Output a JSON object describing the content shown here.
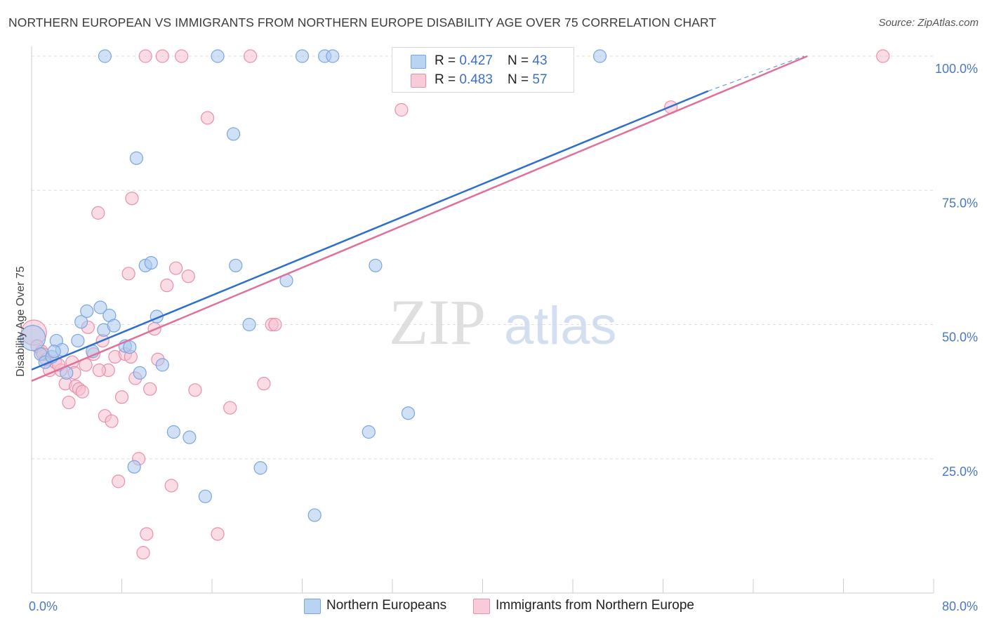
{
  "header": {
    "title": "NORTHERN EUROPEAN VS IMMIGRANTS FROM NORTHERN EUROPE DISABILITY AGE OVER 75 CORRELATION CHART",
    "source": "Source: ZipAtlas.com"
  },
  "watermark": {
    "zip": "ZIP",
    "atlas": "atlas"
  },
  "legend": {
    "blue": {
      "r_label": "R = ",
      "r_value": "0.427",
      "n_label": "N = ",
      "n_value": "43"
    },
    "pink": {
      "r_label": "R = ",
      "r_value": "0.483",
      "n_label": "N = ",
      "n_value": "57"
    }
  },
  "colors": {
    "blue_fill": "#aac8ee",
    "blue_stroke": "#7aa6df",
    "blue_line": "#2e6fcc",
    "pink_fill": "#f6bfd0",
    "pink_stroke": "#ea8fac",
    "pink_line": "#e0709a",
    "grid": "#dcdcdc",
    "tick_text": "#4a78c2"
  },
  "chart_data": {
    "type": "scatter",
    "title": "NORTHERN EUROPEAN VS IMMIGRANTS FROM NORTHERN EUROPE DISABILITY AGE OVER 75 CORRELATION CHART",
    "xlabel": "",
    "ylabel": "Disability Age Over 75",
    "xlim": [
      0,
      80
    ],
    "ylim": [
      0,
      100
    ],
    "x_tick_labels": [
      "0.0%",
      "80.0%"
    ],
    "y_ticks": [
      25,
      50,
      75,
      100
    ],
    "y_tick_labels": [
      "25.0%",
      "50.0%",
      "75.0%",
      "100.0%"
    ],
    "grid": true,
    "legend_position": "top-center",
    "series": [
      {
        "name": "Northern Europeans",
        "r": 0.427,
        "n": 43,
        "trendline": {
          "x": [
            0,
            60
          ],
          "y": [
            41.6,
            93.5
          ],
          "dashed_to": {
            "x": 68.5,
            "y": 100
          }
        },
        "points": [
          [
            0.1,
            47.5
          ],
          [
            0.8,
            44.5
          ],
          [
            1.2,
            43.0
          ],
          [
            1.8,
            44.0
          ],
          [
            2.2,
            47.0
          ],
          [
            2.7,
            45.3
          ],
          [
            3.1,
            41.0
          ],
          [
            4.1,
            47.0
          ],
          [
            4.4,
            50.5
          ],
          [
            4.9,
            52.5
          ],
          [
            5.4,
            45.0
          ],
          [
            6.1,
            53.2
          ],
          [
            6.4,
            49.0
          ],
          [
            6.9,
            51.7
          ],
          [
            7.3,
            49.8
          ],
          [
            8.3,
            46.0
          ],
          [
            8.7,
            45.8
          ],
          [
            9.1,
            23.5
          ],
          [
            9.3,
            81.0
          ],
          [
            9.6,
            41.0
          ],
          [
            10.1,
            61.0
          ],
          [
            10.6,
            61.5
          ],
          [
            11.1,
            51.5
          ],
          [
            11.6,
            42.5
          ],
          [
            12.6,
            30.0
          ],
          [
            14.0,
            29.0
          ],
          [
            15.4,
            18.0
          ],
          [
            16.5,
            100.0
          ],
          [
            17.9,
            85.5
          ],
          [
            18.1,
            61.0
          ],
          [
            19.3,
            50.0
          ],
          [
            20.3,
            23.3
          ],
          [
            22.6,
            58.2
          ],
          [
            24.0,
            100.0
          ],
          [
            25.1,
            14.5
          ],
          [
            26.0,
            100.0
          ],
          [
            26.7,
            100.0
          ],
          [
            29.9,
            30.0
          ],
          [
            30.5,
            61.0
          ],
          [
            33.4,
            33.5
          ],
          [
            50.4,
            100.0
          ],
          [
            6.5,
            100.0
          ],
          [
            2.0,
            45.0
          ]
        ]
      },
      {
        "name": "Immigrants from Northern Europe",
        "r": 0.483,
        "n": 57,
        "trendline": {
          "x": [
            0,
            68.8
          ],
          "y": [
            39.5,
            100
          ]
        },
        "points": [
          [
            0.2,
            48.5
          ],
          [
            0.5,
            46.0
          ],
          [
            0.9,
            45.0
          ],
          [
            1.3,
            43.5
          ],
          [
            1.6,
            41.5
          ],
          [
            2.1,
            43.0
          ],
          [
            2.6,
            41.5
          ],
          [
            3.0,
            39.0
          ],
          [
            3.3,
            35.5
          ],
          [
            3.6,
            43.0
          ],
          [
            3.9,
            38.5
          ],
          [
            4.2,
            38.0
          ],
          [
            4.5,
            37.5
          ],
          [
            4.8,
            42.5
          ],
          [
            5.0,
            49.5
          ],
          [
            5.5,
            44.5
          ],
          [
            5.9,
            70.8
          ],
          [
            6.3,
            47.0
          ],
          [
            6.5,
            33.0
          ],
          [
            6.8,
            41.5
          ],
          [
            7.1,
            32.0
          ],
          [
            7.4,
            44.0
          ],
          [
            7.7,
            20.8
          ],
          [
            8.0,
            36.5
          ],
          [
            8.3,
            44.5
          ],
          [
            8.6,
            59.5
          ],
          [
            8.9,
            73.5
          ],
          [
            9.2,
            40.0
          ],
          [
            9.5,
            25.0
          ],
          [
            9.9,
            7.5
          ],
          [
            10.2,
            11.0
          ],
          [
            10.5,
            38.0
          ],
          [
            10.9,
            49.2
          ],
          [
            11.2,
            43.5
          ],
          [
            11.6,
            100.0
          ],
          [
            12.0,
            57.3
          ],
          [
            12.4,
            20.0
          ],
          [
            12.8,
            60.5
          ],
          [
            13.3,
            100.0
          ],
          [
            13.9,
            59.0
          ],
          [
            14.5,
            37.8
          ],
          [
            15.6,
            88.5
          ],
          [
            16.5,
            11.0
          ],
          [
            17.6,
            34.5
          ],
          [
            19.4,
            100.0
          ],
          [
            20.6,
            39.0
          ],
          [
            21.3,
            50.0
          ],
          [
            21.6,
            50.0
          ],
          [
            32.8,
            90.0
          ],
          [
            56.7,
            90.5
          ],
          [
            75.5,
            100.0
          ],
          [
            10.1,
            100.0
          ],
          [
            8.8,
            44.0
          ],
          [
            3.8,
            41.0
          ],
          [
            6.0,
            41.5
          ],
          [
            1.0,
            44.5
          ],
          [
            2.4,
            42.5
          ]
        ]
      }
    ]
  }
}
